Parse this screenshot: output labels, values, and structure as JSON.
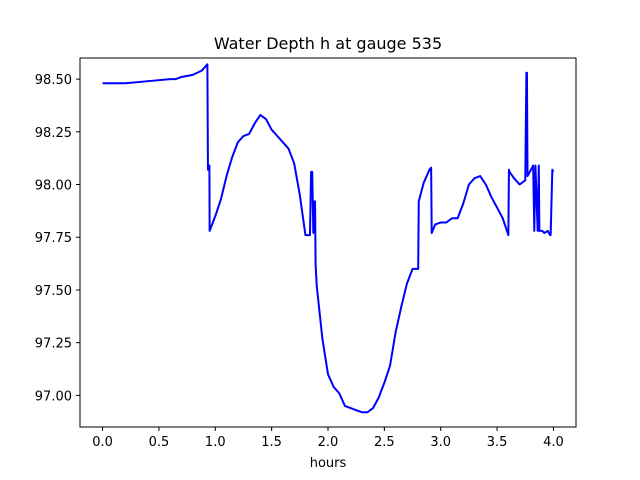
{
  "chart_data": {
    "type": "line",
    "title": "Water Depth h at gauge 535",
    "xlabel": "hours",
    "ylabel": "",
    "xlim": [
      -0.2,
      4.2
    ],
    "ylim": [
      96.85,
      98.6
    ],
    "xticks": [
      0.0,
      0.5,
      1.0,
      1.5,
      2.0,
      2.5,
      3.0,
      3.5,
      4.0
    ],
    "xtick_labels": [
      "0.0",
      "0.5",
      "1.0",
      "1.5",
      "2.0",
      "2.5",
      "3.0",
      "3.5",
      "4.0"
    ],
    "yticks": [
      97.0,
      97.25,
      97.5,
      97.75,
      98.0,
      98.25,
      98.5
    ],
    "ytick_labels": [
      "97.00",
      "97.25",
      "97.50",
      "97.75",
      "98.00",
      "98.25",
      "98.50"
    ],
    "grid": false,
    "legend": "none",
    "series": [
      {
        "color": "#0000ff",
        "x": [
          0.0,
          0.2,
          0.4,
          0.6,
          0.65,
          0.7,
          0.8,
          0.88,
          0.93,
          0.935,
          0.94,
          0.945,
          0.948,
          0.95,
          1.0,
          1.05,
          1.1,
          1.15,
          1.2,
          1.25,
          1.3,
          1.35,
          1.4,
          1.45,
          1.5,
          1.55,
          1.6,
          1.65,
          1.7,
          1.75,
          1.8,
          1.84,
          1.85,
          1.86,
          1.87,
          1.88,
          1.885,
          1.89,
          1.9,
          1.95,
          2.0,
          2.05,
          2.1,
          2.15,
          2.2,
          2.25,
          2.3,
          2.35,
          2.4,
          2.45,
          2.5,
          2.55,
          2.6,
          2.65,
          2.7,
          2.75,
          2.8,
          2.805,
          2.85,
          2.9,
          2.915,
          2.92,
          2.95,
          3.0,
          3.05,
          3.1,
          3.15,
          3.2,
          3.25,
          3.3,
          3.35,
          3.4,
          3.45,
          3.5,
          3.55,
          3.6,
          3.605,
          3.61,
          3.65,
          3.7,
          3.75,
          3.76,
          3.765,
          3.77,
          3.8,
          3.82,
          3.83,
          3.84,
          3.86,
          3.87,
          3.875,
          3.88,
          3.9,
          3.92,
          3.95,
          3.97,
          3.975,
          3.99,
          4.0
        ],
        "y": [
          98.48,
          98.48,
          98.49,
          98.5,
          98.5,
          98.51,
          98.52,
          98.54,
          98.57,
          98.07,
          98.07,
          98.09,
          98.09,
          97.78,
          97.85,
          97.93,
          98.04,
          98.13,
          98.2,
          98.23,
          98.24,
          98.29,
          98.33,
          98.31,
          98.26,
          98.23,
          98.2,
          98.17,
          98.1,
          97.95,
          97.76,
          97.76,
          98.06,
          98.06,
          97.77,
          97.92,
          97.92,
          97.62,
          97.52,
          97.27,
          97.1,
          97.04,
          97.01,
          96.95,
          96.94,
          96.93,
          96.92,
          96.92,
          96.94,
          96.99,
          97.06,
          97.14,
          97.3,
          97.42,
          97.53,
          97.6,
          97.6,
          97.92,
          98.01,
          98.07,
          98.08,
          97.77,
          97.81,
          97.82,
          97.82,
          97.84,
          97.84,
          97.91,
          98.0,
          98.03,
          98.04,
          98.0,
          97.94,
          97.89,
          97.84,
          97.76,
          98.07,
          98.06,
          98.03,
          98.0,
          98.02,
          98.53,
          98.53,
          98.04,
          98.07,
          98.09,
          97.78,
          98.09,
          97.78,
          98.09,
          97.78,
          97.78,
          97.78,
          97.77,
          97.78,
          97.76,
          97.76,
          98.07,
          98.06
        ]
      }
    ]
  }
}
